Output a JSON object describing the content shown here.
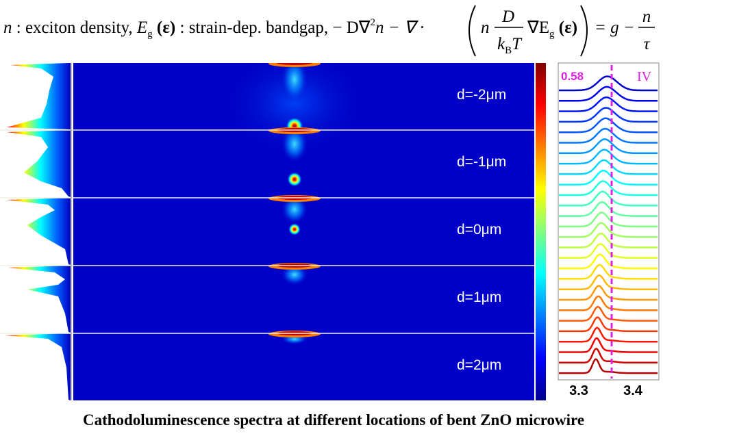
{
  "equation": {
    "parts": [
      "n",
      " : exciton density, ",
      "E",
      "g",
      " (ε)",
      " : strain-dep. bandgap, − D∇",
      "2",
      "n − ∇ ·"
    ],
    "inner_n": "n",
    "numerator": "D",
    "denominator_k": "k",
    "denominator_sub": "B",
    "denominator_T": "T",
    "gradient": "∇E",
    "gradient_sub": "g",
    "gradient_arg": " (ε)",
    "equals": "= g −",
    "rhs_numerator": "n",
    "rhs_denominator": "τ"
  },
  "panels": [
    {
      "label": "d=-2μm"
    },
    {
      "label": "d=-1μm"
    },
    {
      "label": "d=0μm"
    },
    {
      "label": "d=1μm"
    },
    {
      "label": "d=2μm"
    }
  ],
  "spectra": {
    "annotation_value": "0.58",
    "annotation_label": "IV",
    "x_tick_labels": [
      "3.3",
      "3.4"
    ]
  },
  "caption": "Cathodoluminescence spectra at different locations of bent ZnO microwire"
}
